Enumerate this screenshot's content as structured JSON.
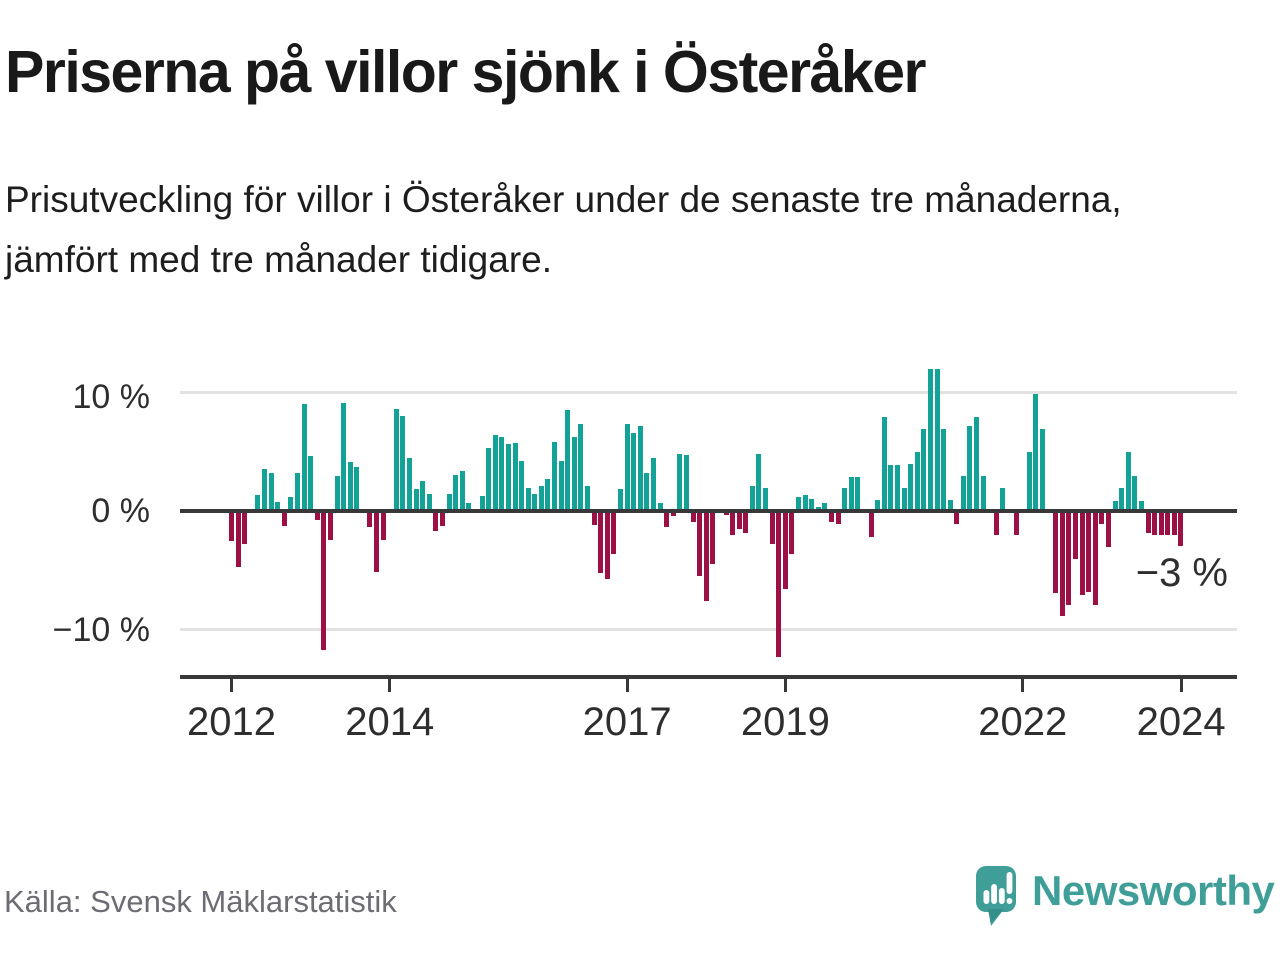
{
  "header": {
    "title": "Priserna på villor sjönk i Österåker",
    "subtitle": "Prisutveckling för villor i Österåker under de senaste tre månaderna, jämfört med tre månader tidigare."
  },
  "footer": {
    "source": "Källa: Svensk Mäklarstatistik",
    "brand": "Newsworthy",
    "brand_icon": "newsworthy-speech-bubble-bar-chart-icon",
    "brand_color": "#3f9f98"
  },
  "colors": {
    "positive_bar": "#12a296",
    "negative_bar": "#9c1046",
    "axis": "#383838",
    "grid": "#e2e2e2",
    "text": "#191919",
    "muted_text": "#6c6c74"
  },
  "chart_data": {
    "type": "bar",
    "title": "Priserna på villor sjönk i Österåker",
    "unit": "%",
    "x_start": "2012-01",
    "x_end": "2024-01",
    "x_tick_labels": [
      "2012",
      "2014",
      "2017",
      "2019",
      "2022",
      "2024"
    ],
    "x_tick_month_indices": [
      0,
      24,
      60,
      84,
      120,
      144
    ],
    "y_tick_labels": [
      "10 %",
      "0 %",
      "−10 %"
    ],
    "y_tick_values": [
      10,
      0,
      -10
    ],
    "ylim": [
      -14,
      13.5
    ],
    "grid": "horizontal",
    "legend": "none",
    "annotation": {
      "text": "−3 %",
      "value": -3,
      "month": "2024-01"
    },
    "values_monthly_pct": [
      -2.6,
      -4.8,
      -2.8,
      0,
      1.3,
      3.5,
      3.2,
      0.7,
      -1.3,
      1.1,
      3.2,
      9.0,
      4.6,
      -0.8,
      -11.8,
      -2.5,
      2.9,
      9.1,
      4.1,
      3.7,
      0,
      -1.4,
      -5.2,
      -2.5,
      0,
      8.6,
      8.0,
      4.4,
      1.8,
      2.5,
      1.4,
      -1.7,
      -1.3,
      1.4,
      3.0,
      3.3,
      0.6,
      0,
      1.2,
      5.3,
      6.4,
      6.2,
      5.6,
      5.7,
      4.2,
      1.9,
      1.4,
      2.1,
      2.7,
      5.8,
      4.2,
      8.5,
      6.2,
      7.3,
      2.1,
      -1.2,
      -5.3,
      -5.8,
      -3.7,
      1.8,
      7.3,
      6.5,
      7.1,
      3.2,
      4.4,
      0.6,
      -1.4,
      -0.5,
      4.8,
      4.7,
      -1.0,
      -5.5,
      -7.6,
      -4.5,
      0,
      -0.4,
      -2.1,
      -1.6,
      -1.9,
      2.1,
      4.8,
      1.9,
      -2.8,
      -12.4,
      -6.6,
      -3.7,
      1.1,
      1.3,
      1.0,
      0.3,
      0.6,
      -1.0,
      -1.1,
      1.9,
      2.8,
      2.8,
      0,
      -2.2,
      0.9,
      7.9,
      3.8,
      3.8,
      1.9,
      3.9,
      4.9,
      6.9,
      11.9,
      11.9,
      6.9,
      0.9,
      -1.1,
      2.9,
      7.1,
      7.9,
      2.9,
      0,
      -2.1,
      1.9,
      0,
      -2.1,
      0,
      4.9,
      9.8,
      6.9,
      0,
      -7.0,
      -8.9,
      -8.0,
      -4.1,
      -7.1,
      -6.9,
      -8.0,
      -1.1,
      -3.1,
      0.8,
      1.9,
      4.9,
      2.9,
      0.8,
      -1.9,
      -2.1,
      -2.1,
      -2.1,
      -2.1,
      -3.0
    ]
  }
}
